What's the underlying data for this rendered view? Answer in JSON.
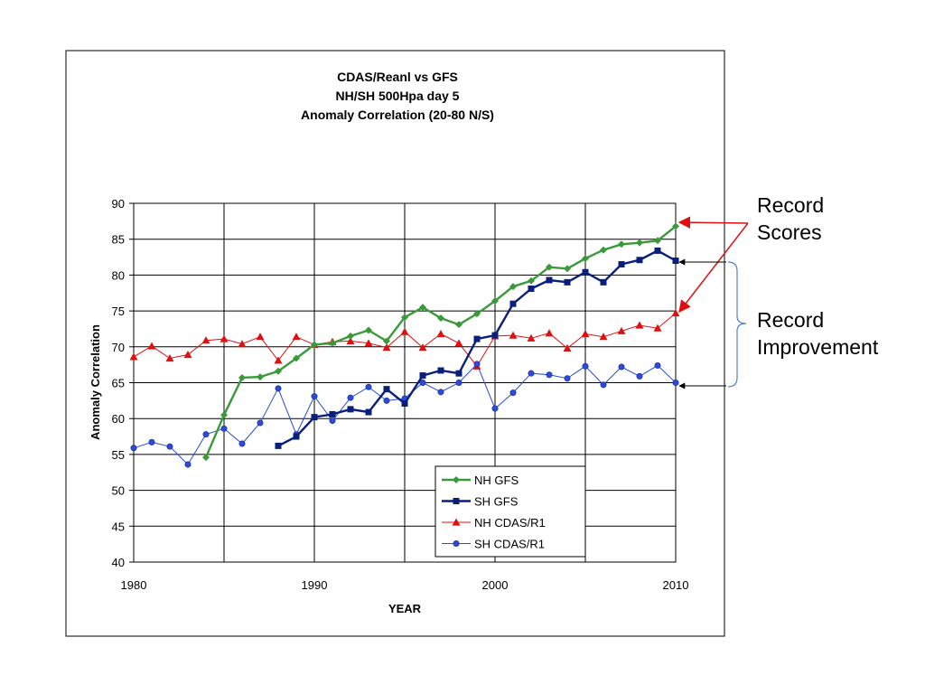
{
  "chart_data": {
    "type": "line",
    "title": [
      "CDAS/Reanl vs GFS",
      "NH/SH 500Hpa day 5",
      "Anomaly Correlation (20-80 N/S)"
    ],
    "xlabel": "YEAR",
    "ylabel": "Anomaly Correlation",
    "xlim": [
      1980,
      2010
    ],
    "ylim": [
      40,
      90
    ],
    "xticks": [
      1980,
      1990,
      2000,
      2010
    ],
    "yticks": [
      40,
      45,
      50,
      55,
      60,
      65,
      70,
      75,
      80,
      85,
      90
    ],
    "grid": true,
    "legend_position": "bottom-right",
    "series": [
      {
        "name": "NH GFS",
        "color": "#3a9a3a",
        "marker": "diamond",
        "x": [
          1984,
          1985,
          1986,
          1987,
          1988,
          1989,
          1990,
          1991,
          1992,
          1993,
          1994,
          1995,
          1996,
          1997,
          1998,
          1999,
          2000,
          2001,
          2002,
          2003,
          2004,
          2005,
          2006,
          2007,
          2008,
          2009,
          2010
        ],
        "y": [
          54.6,
          60.5,
          65.7,
          65.8,
          66.6,
          68.4,
          70.3,
          70.5,
          71.5,
          72.3,
          70.8,
          74.1,
          75.5,
          74.0,
          73.1,
          74.6,
          76.4,
          78.4,
          79.2,
          81.1,
          80.9,
          82.3,
          83.5,
          84.3,
          84.5,
          84.8,
          86.8
        ]
      },
      {
        "name": "SH GFS",
        "color": "#0a1f7a",
        "marker": "square",
        "x": [
          1988,
          1989,
          1990,
          1991,
          1992,
          1993,
          1994,
          1995,
          1996,
          1997,
          1998,
          1999,
          2000,
          2001,
          2002,
          2003,
          2004,
          2005,
          2006,
          2007,
          2008,
          2009,
          2010
        ],
        "y": [
          56.2,
          57.5,
          60.2,
          60.6,
          61.3,
          60.9,
          64.1,
          62.1,
          66.0,
          66.7,
          66.3,
          71.1,
          71.6,
          76.0,
          78.1,
          79.3,
          79.0,
          80.4,
          79.0,
          81.5,
          82.1,
          83.4,
          82.0
        ]
      },
      {
        "name": "NH CDAS/R1",
        "color": "#e01010",
        "marker": "triangle",
        "x": [
          1980,
          1981,
          1982,
          1983,
          1984,
          1985,
          1986,
          1987,
          1988,
          1989,
          1990,
          1991,
          1992,
          1993,
          1994,
          1995,
          1996,
          1997,
          1998,
          1999,
          2000,
          2001,
          2002,
          2003,
          2004,
          2005,
          2006,
          2007,
          2008,
          2009,
          2010
        ],
        "y": [
          68.6,
          70.1,
          68.4,
          68.9,
          70.9,
          71.1,
          70.4,
          71.4,
          68.1,
          71.4,
          70.3,
          70.7,
          70.8,
          70.5,
          69.9,
          72.1,
          69.9,
          71.8,
          70.5,
          67.3,
          71.5,
          71.6,
          71.2,
          71.9,
          69.8,
          71.8,
          71.4,
          72.2,
          73.0,
          72.6,
          74.7
        ]
      },
      {
        "name": "SH CDAS/R1",
        "color": "#2b4bd8",
        "marker": "circle",
        "x": [
          1980,
          1981,
          1982,
          1983,
          1984,
          1985,
          1986,
          1987,
          1988,
          1989,
          1990,
          1991,
          1992,
          1993,
          1994,
          1995,
          1996,
          1997,
          1998,
          1999,
          2000,
          2001,
          2002,
          2003,
          2004,
          2005,
          2006,
          2007,
          2008,
          2009,
          2010
        ],
        "y": [
          55.9,
          56.7,
          56.1,
          53.6,
          57.8,
          58.6,
          56.5,
          59.4,
          64.2,
          57.8,
          63.1,
          59.7,
          62.9,
          64.4,
          62.5,
          62.8,
          65.0,
          63.7,
          65.0,
          67.6,
          61.4,
          63.6,
          66.3,
          66.1,
          65.6,
          67.3,
          64.7,
          67.2,
          65.9,
          67.4,
          65.0
        ]
      }
    ]
  },
  "annotations": {
    "record_scores": [
      "Record",
      "Scores"
    ],
    "record_improvement": [
      "Record",
      "Improvement"
    ]
  }
}
